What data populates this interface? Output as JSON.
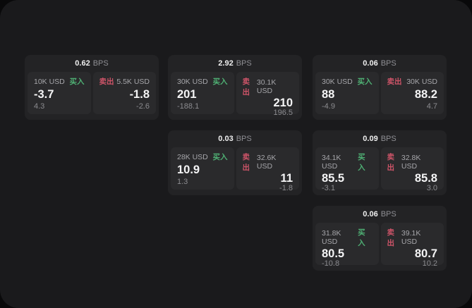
{
  "labels": {
    "buy": "买入",
    "sell": "卖出",
    "bps_unit": "BPS"
  },
  "colors": {
    "buy_accent": "#4fb074",
    "sell_accent": "#cd5468",
    "panel_background": "#1a1a1c",
    "card_background": "#232325",
    "tile_background": "#2a2a2c",
    "value_text": "#f4f4f5",
    "muted_text": "#8b8b8f"
  },
  "cards": [
    {
      "bps": "0.62",
      "buy": {
        "size": "10K USD",
        "price": "-3.7",
        "delta": "4.3"
      },
      "sell": {
        "size": "5.5K USD",
        "price": "-1.8",
        "delta": "-2.6"
      }
    },
    {
      "bps": "2.92",
      "buy": {
        "size": "30K USD",
        "price": "201",
        "delta": "-188.1"
      },
      "sell": {
        "size": "30.1K USD",
        "price": "210",
        "delta": "196.5"
      }
    },
    {
      "bps": "0.06",
      "buy": {
        "size": "30K USD",
        "price": "88",
        "delta": "-4.9"
      },
      "sell": {
        "size": "30K USD",
        "price": "88.2",
        "delta": "4.7"
      }
    },
    {
      "bps": "0.03",
      "buy": {
        "size": "28K USD",
        "price": "10.9",
        "delta": "1.3"
      },
      "sell": {
        "size": "32.6K USD",
        "price": "11",
        "delta": "-1.8"
      }
    },
    {
      "bps": "0.09",
      "buy": {
        "size": "34.1K USD",
        "price": "85.5",
        "delta": "-3.1"
      },
      "sell": {
        "size": "32.8K USD",
        "price": "85.8",
        "delta": "3.0"
      }
    },
    {
      "bps": "0.06",
      "buy": {
        "size": "31.8K USD",
        "price": "80.5",
        "delta": "-10.8"
      },
      "sell": {
        "size": "39.1K USD",
        "price": "80.7",
        "delta": "10.2"
      }
    }
  ]
}
